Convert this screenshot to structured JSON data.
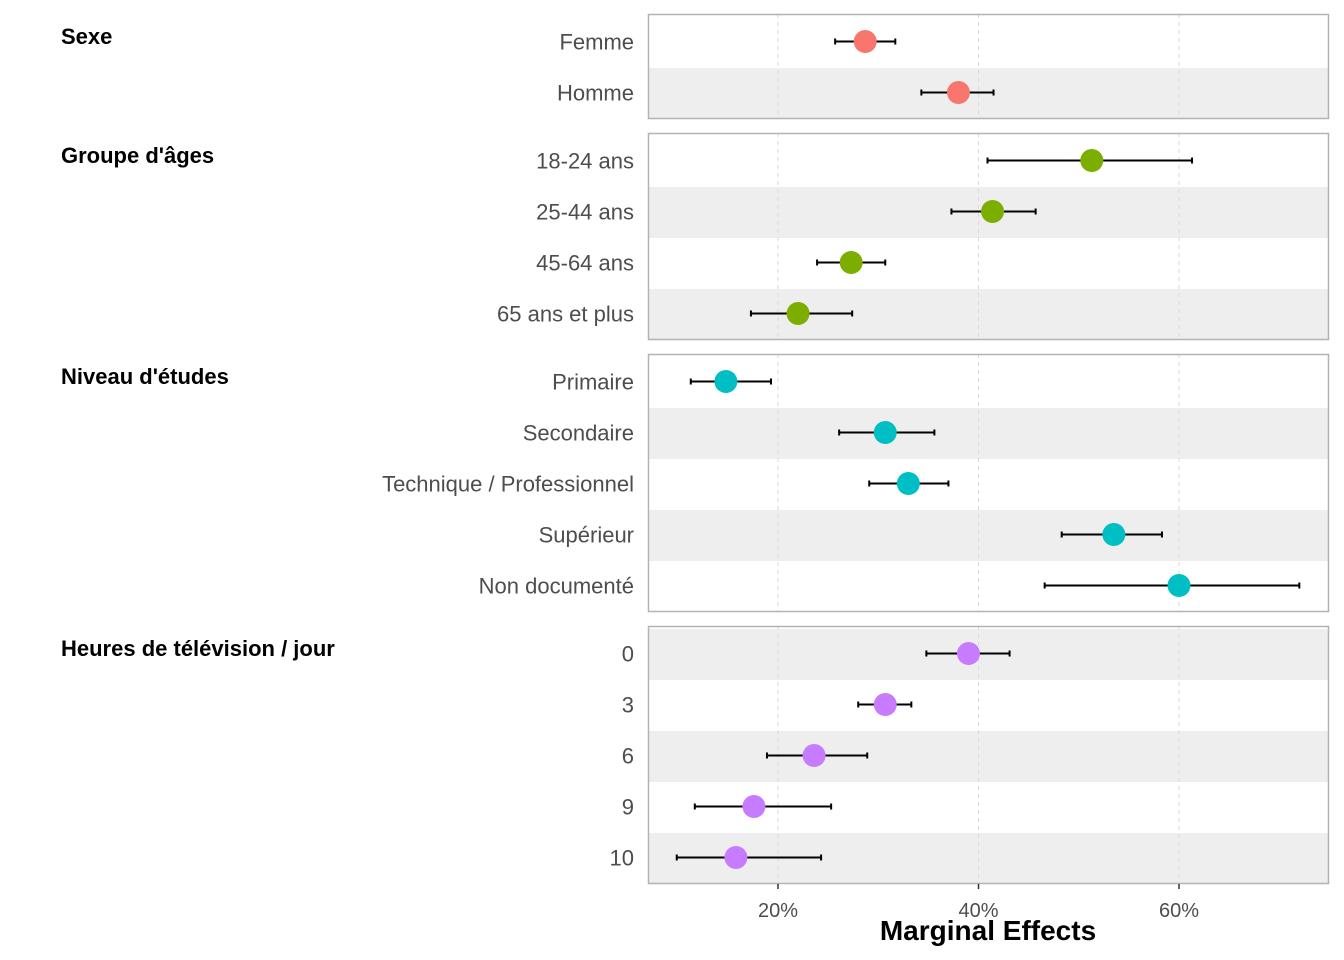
{
  "chart_data": {
    "type": "scatter",
    "title": "",
    "xlabel": "Marginal Effects",
    "ylabel": "",
    "x_ticks": [
      {
        "value": 0.2,
        "label": "20%"
      },
      {
        "value": 0.4,
        "label": "40%"
      },
      {
        "value": 0.6,
        "label": "60%"
      }
    ],
    "xlim": [
      0.07,
      0.75
    ],
    "grid": "vertical dashed",
    "legend": "none",
    "groups": [
      {
        "name": "Sexe",
        "color": "#F8766D",
        "items": [
          {
            "label": "Femme",
            "estimate": 0.287,
            "low": 0.257,
            "high": 0.317
          },
          {
            "label": "Homme",
            "estimate": 0.38,
            "low": 0.343,
            "high": 0.415
          }
        ]
      },
      {
        "name": "Groupe d'âges",
        "color": "#7CAE00",
        "items": [
          {
            "label": "18-24 ans",
            "estimate": 0.513,
            "low": 0.409,
            "high": 0.613
          },
          {
            "label": "25-44 ans",
            "estimate": 0.414,
            "low": 0.373,
            "high": 0.457
          },
          {
            "label": "45-64 ans",
            "estimate": 0.273,
            "low": 0.239,
            "high": 0.307
          },
          {
            "label": "65 ans et plus",
            "estimate": 0.22,
            "low": 0.173,
            "high": 0.274
          }
        ]
      },
      {
        "name": "Niveau d'études",
        "color": "#00BFC4",
        "items": [
          {
            "label": "Primaire",
            "estimate": 0.148,
            "low": 0.113,
            "high": 0.193
          },
          {
            "label": "Secondaire",
            "estimate": 0.307,
            "low": 0.261,
            "high": 0.356
          },
          {
            "label": "Technique / Professionnel",
            "estimate": 0.33,
            "low": 0.291,
            "high": 0.37
          },
          {
            "label": "Supérieur",
            "estimate": 0.535,
            "low": 0.483,
            "high": 0.583
          },
          {
            "label": "Non documenté",
            "estimate": 0.6,
            "low": 0.466,
            "high": 0.72
          }
        ]
      },
      {
        "name": "Heures de télévision / jour",
        "color": "#C77CFF",
        "items": [
          {
            "label": "0",
            "estimate": 0.39,
            "low": 0.348,
            "high": 0.431
          },
          {
            "label": "3",
            "estimate": 0.307,
            "low": 0.28,
            "high": 0.333
          },
          {
            "label": "6",
            "estimate": 0.236,
            "low": 0.189,
            "high": 0.289
          },
          {
            "label": "9",
            "estimate": 0.176,
            "low": 0.117,
            "high": 0.253
          },
          {
            "label": "10",
            "estimate": 0.158,
            "low": 0.099,
            "high": 0.243
          }
        ]
      }
    ]
  }
}
